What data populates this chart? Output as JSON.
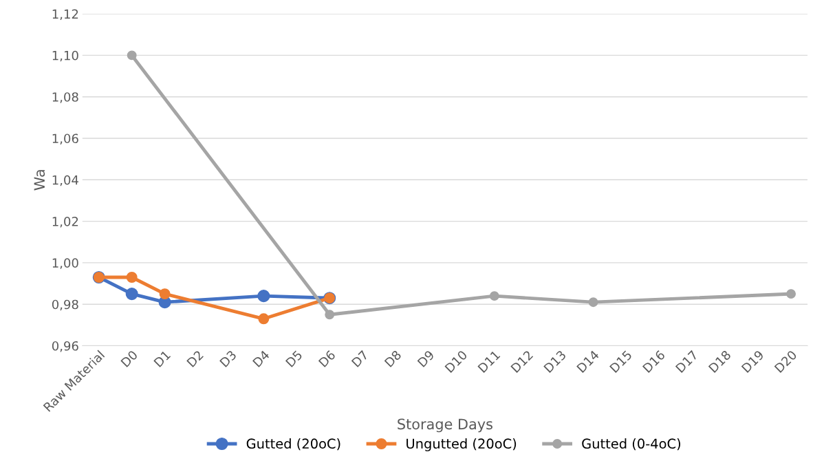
{
  "chart_data": {
    "type": "line",
    "xlabel": "Storage Days",
    "ylabel": "Wa",
    "categories": [
      "Raw Material",
      "D0",
      "D1",
      "D2",
      "D3",
      "D4",
      "D5",
      "D6",
      "D7",
      "D8",
      "D9",
      "D10",
      "D11",
      "D12",
      "D13",
      "D14",
      "D15",
      "D16",
      "D17",
      "D18",
      "D19",
      "D20"
    ],
    "series": [
      {
        "name": "Gutted (20oC)",
        "color": "#4472c4",
        "values": [
          0.993,
          0.985,
          0.981,
          null,
          null,
          0.984,
          null,
          0.983,
          null,
          null,
          null,
          null,
          null,
          null,
          null,
          null,
          null,
          null,
          null,
          null,
          null,
          null
        ]
      },
      {
        "name": "Ungutted (20oC)",
        "color": "#ed7d31",
        "values": [
          0.993,
          0.993,
          0.985,
          null,
          null,
          0.973,
          null,
          0.983,
          null,
          null,
          null,
          null,
          null,
          null,
          null,
          null,
          null,
          null,
          null,
          null,
          null,
          null
        ]
      },
      {
        "name": "Gutted (0-4oC)",
        "color": "#a5a5a5",
        "values": [
          null,
          1.1,
          null,
          null,
          null,
          null,
          null,
          0.975,
          null,
          null,
          null,
          null,
          0.984,
          null,
          null,
          0.981,
          null,
          null,
          null,
          null,
          null,
          0.985
        ]
      }
    ],
    "ylim": [
      0.96,
      1.12
    ],
    "yticks": [
      {
        "value": 0.96,
        "label": "0,96"
      },
      {
        "value": 0.98,
        "label": "0,98"
      },
      {
        "value": 1.0,
        "label": "1,00"
      },
      {
        "value": 1.02,
        "label": "1,02"
      },
      {
        "value": 1.04,
        "label": "1,04"
      },
      {
        "value": 1.06,
        "label": "1,06"
      },
      {
        "value": 1.08,
        "label": "1,08"
      },
      {
        "value": 1.1,
        "label": "1,10"
      },
      {
        "value": 1.12,
        "label": "1,12"
      }
    ],
    "grid": "y",
    "legend": "bottom",
    "marker": "circle",
    "line_style": "solid"
  }
}
